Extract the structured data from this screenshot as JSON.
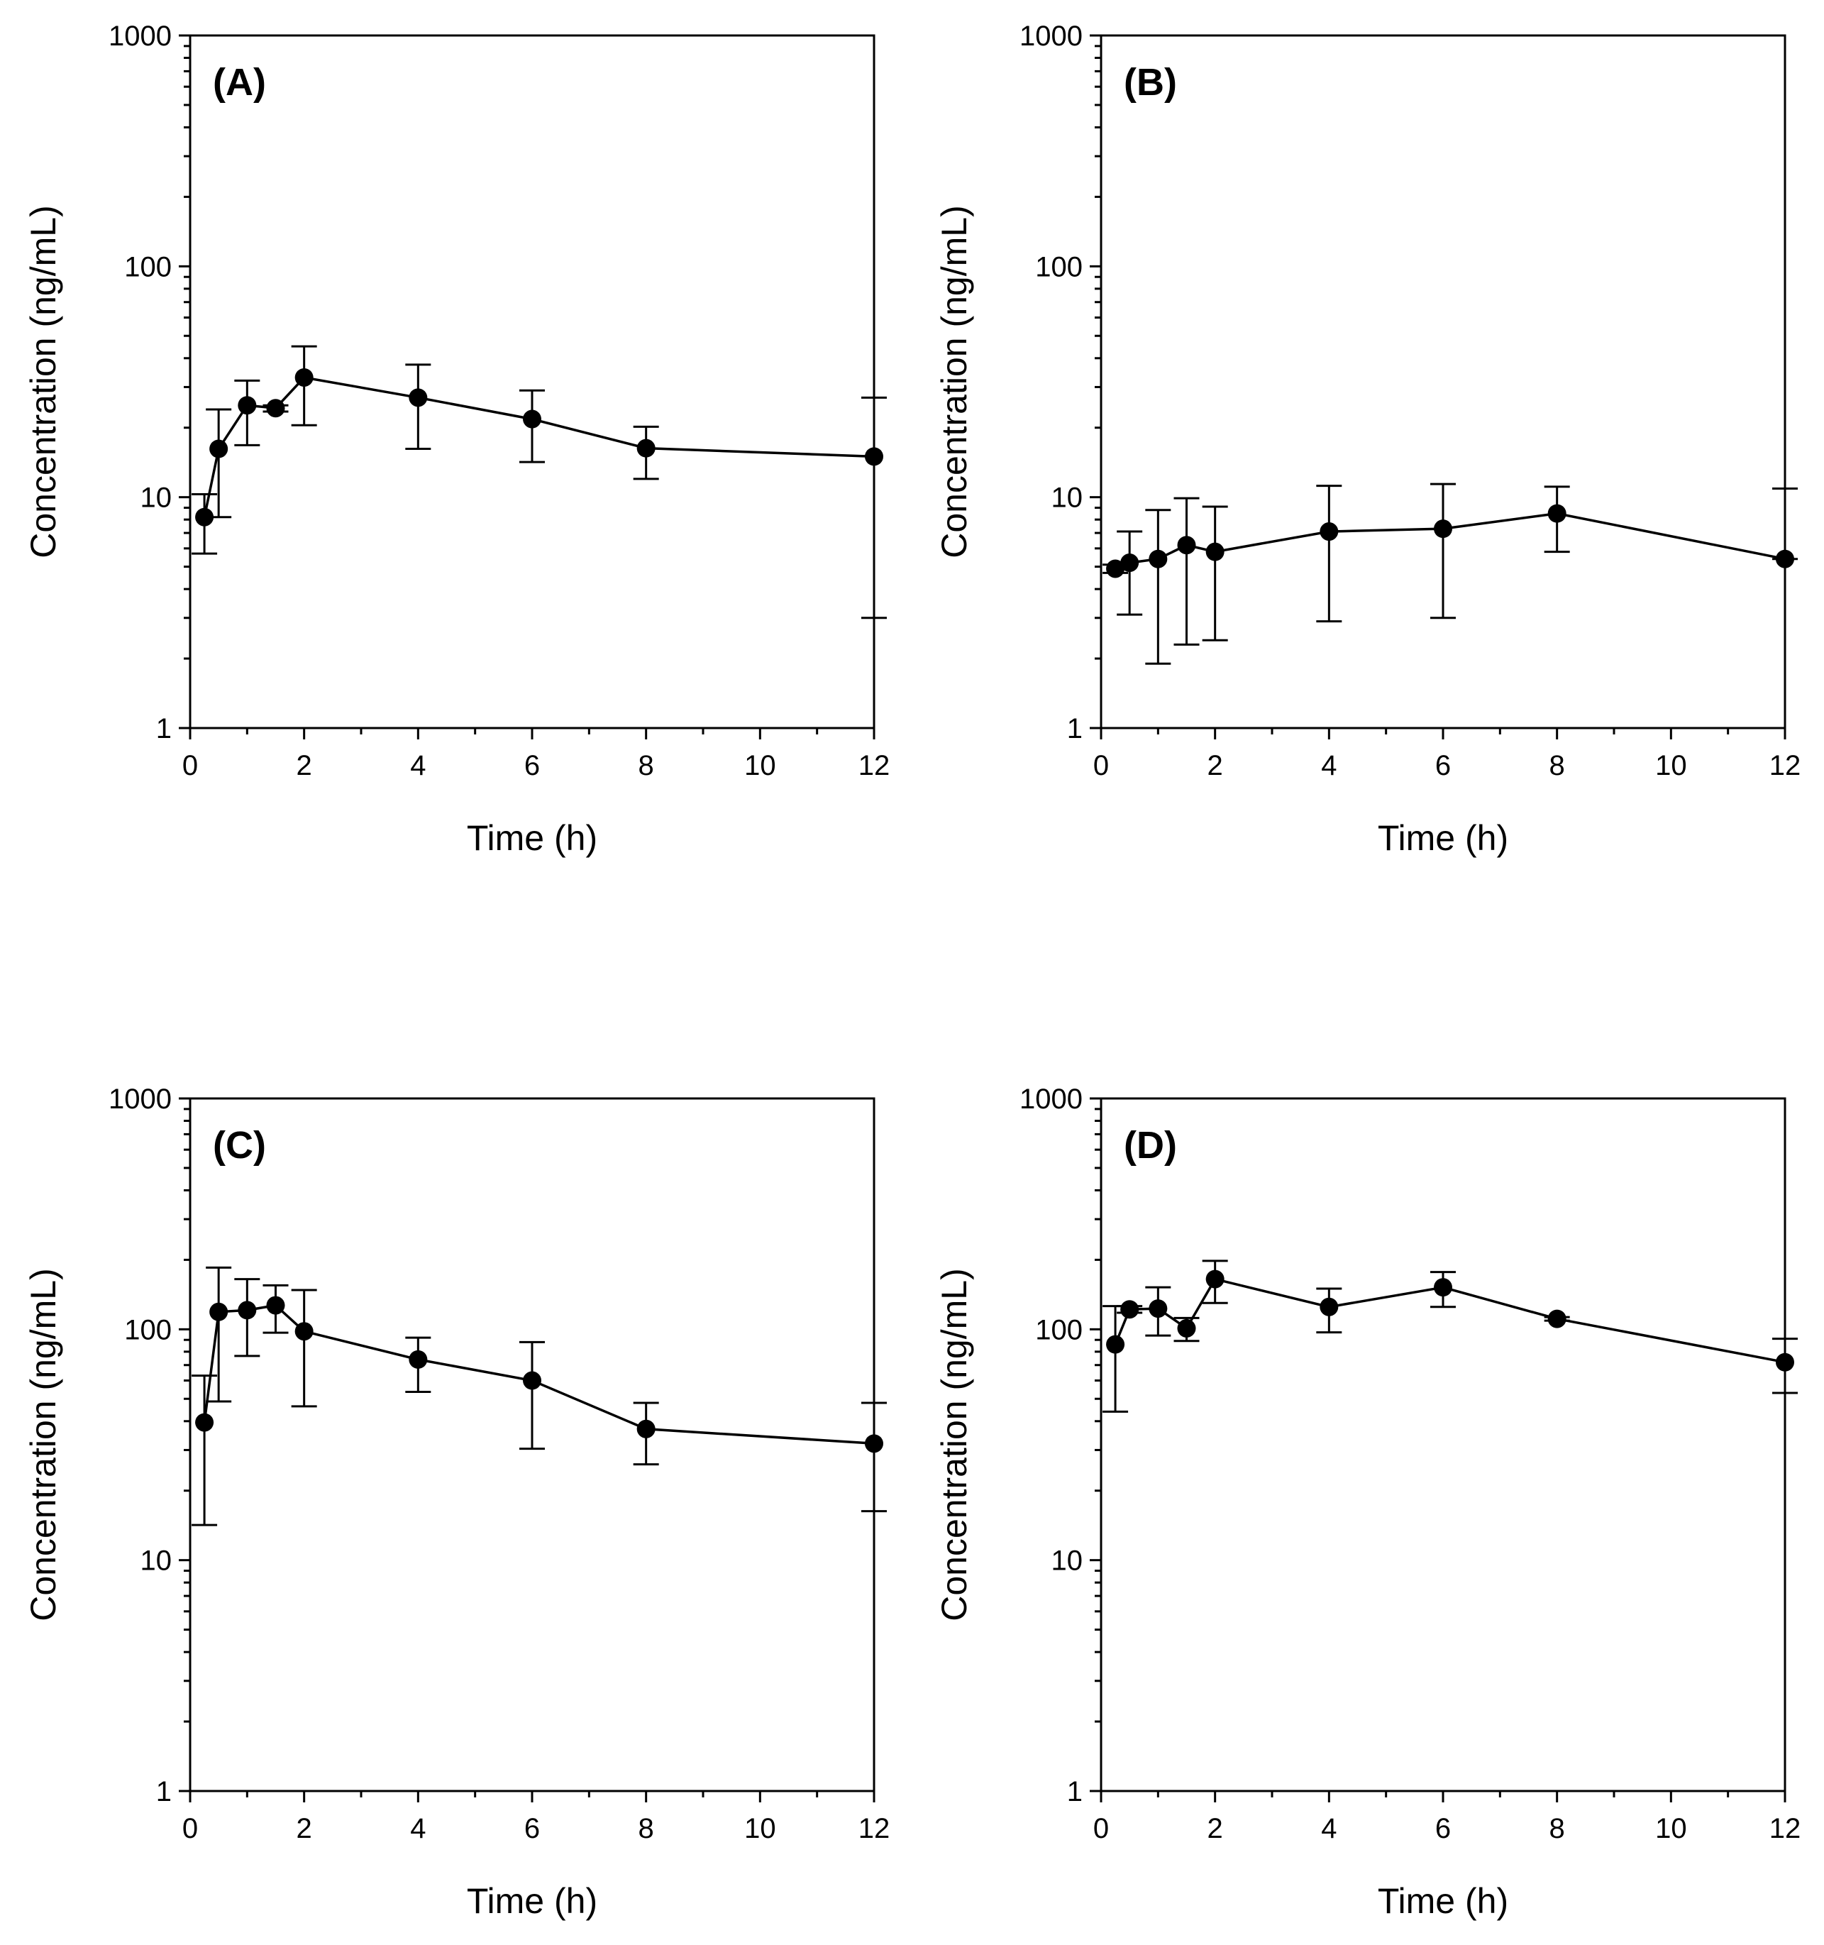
{
  "chart_data": [
    {
      "type": "line",
      "panel_label": "(A)",
      "xlabel": "Time (h)",
      "ylabel": "Concentration (ng/mL)",
      "yscale": "log",
      "xlim": [
        0,
        12
      ],
      "ylim": [
        1,
        1000
      ],
      "xticks": [
        "0",
        "2",
        "4",
        "6",
        "8",
        "10",
        "12"
      ],
      "yticks": [
        "1",
        "10",
        "100",
        "1000"
      ],
      "x": [
        0.25,
        0.5,
        1,
        1.5,
        2,
        4,
        6,
        8,
        12
      ],
      "y": [
        8.2,
        16.2,
        25,
        24.3,
        33,
        27,
        21.8,
        16.3,
        15
      ],
      "err_low": [
        5.7,
        8.2,
        16.8,
        23.5,
        20.5,
        16.2,
        14.2,
        12,
        3
      ],
      "err_high": [
        10.3,
        24,
        32,
        25,
        45,
        37.5,
        29,
        20.2,
        27
      ]
    },
    {
      "type": "line",
      "panel_label": "(B)",
      "xlabel": "Time (h)",
      "ylabel": "Concentration (ng/mL)",
      "yscale": "log",
      "xlim": [
        0,
        12
      ],
      "ylim": [
        1,
        1000
      ],
      "xticks": [
        "0",
        "2",
        "4",
        "6",
        "8",
        "10",
        "12"
      ],
      "yticks": [
        "1",
        "10",
        "100",
        "1000"
      ],
      "x": [
        0.25,
        0.5,
        1,
        1.5,
        2,
        4,
        6,
        8,
        12
      ],
      "y": [
        4.9,
        5.2,
        5.4,
        6.2,
        5.8,
        7.1,
        7.3,
        8.5,
        5.4
      ],
      "err_low": [
        4.7,
        3.1,
        1.9,
        2.3,
        2.4,
        2.9,
        3.0,
        5.8,
        5.4
      ],
      "err_high": [
        5.1,
        7.1,
        8.8,
        9.9,
        9.1,
        11.2,
        11.4,
        11.1,
        10.9
      ]
    },
    {
      "type": "line",
      "panel_label": "(C)",
      "xlabel": "Time (h)",
      "ylabel": "Concentration (ng/mL)",
      "yscale": "log",
      "xlim": [
        0,
        12
      ],
      "ylim": [
        1,
        1000
      ],
      "xticks": [
        "0",
        "2",
        "4",
        "6",
        "8",
        "10",
        "12"
      ],
      "yticks": [
        "1",
        "10",
        "100",
        "1000"
      ],
      "x": [
        0.25,
        0.5,
        1,
        1.5,
        2,
        4,
        6,
        8,
        12
      ],
      "y": [
        39.5,
        119,
        121,
        127,
        98,
        74,
        60,
        37,
        32
      ],
      "err_low": [
        14.2,
        48.7,
        76.7,
        96.7,
        46.4,
        53.6,
        30.4,
        26,
        16.3
      ],
      "err_high": [
        63,
        185,
        165,
        155,
        148,
        92,
        88,
        48,
        48
      ]
    },
    {
      "type": "line",
      "panel_label": "(D)",
      "xlabel": "Time (h)",
      "ylabel": "Concentration (ng/mL)",
      "yscale": "log",
      "xlim": [
        0,
        12
      ],
      "ylim": [
        1,
        1000
      ],
      "xticks": [
        "0",
        "2",
        "4",
        "6",
        "8",
        "10",
        "12"
      ],
      "yticks": [
        "1",
        "10",
        "100",
        "1000"
      ],
      "x": [
        0.25,
        0.5,
        1,
        1.5,
        2,
        4,
        6,
        8,
        12
      ],
      "y": [
        86,
        122,
        123,
        101,
        165,
        125,
        152,
        111,
        72
      ],
      "err_low": [
        44,
        118,
        94,
        89,
        130,
        97,
        125,
        109,
        53
      ],
      "err_high": [
        126,
        126,
        152,
        112,
        198,
        150,
        177,
        113,
        91
      ]
    }
  ]
}
